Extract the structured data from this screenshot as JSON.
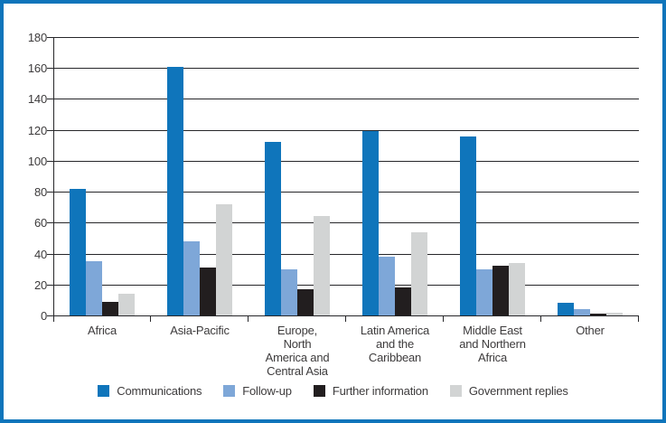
{
  "colors": {
    "frame_border": "#0f75bb",
    "gridline": "#27272a",
    "text": "#3d3b3c"
  },
  "chart_data": {
    "type": "bar",
    "title": "",
    "xlabel": "",
    "ylabel": "",
    "grid": true,
    "legend_position": "bottom",
    "y_axis": {
      "min": 0,
      "max": 180,
      "step": 20,
      "ticks": [
        "0",
        "20",
        "40",
        "60",
        "80",
        "100",
        "120",
        "140",
        "160",
        "180"
      ]
    },
    "categories": [
      "Africa",
      "Asia-Pacific",
      "Europe,\nNorth\nAmerica and\nCentral Asia",
      "Latin America\nand the\nCaribbean",
      "Middle East\nand Northern\nAfrica",
      "Other"
    ],
    "series": [
      {
        "name": "Communications",
        "color": "#0f75bb",
        "values": [
          82,
          161,
          112,
          119,
          116,
          8
        ]
      },
      {
        "name": "Follow-up",
        "color": "#7ea7d8",
        "values": [
          35,
          48,
          30,
          38,
          30,
          4
        ]
      },
      {
        "name": "Further information",
        "color": "#221e1f",
        "values": [
          9,
          31,
          17,
          18,
          32,
          1
        ]
      },
      {
        "name": "Government replies",
        "color": "#d2d4d4",
        "values": [
          14,
          72,
          64,
          54,
          34,
          2
        ]
      }
    ]
  }
}
